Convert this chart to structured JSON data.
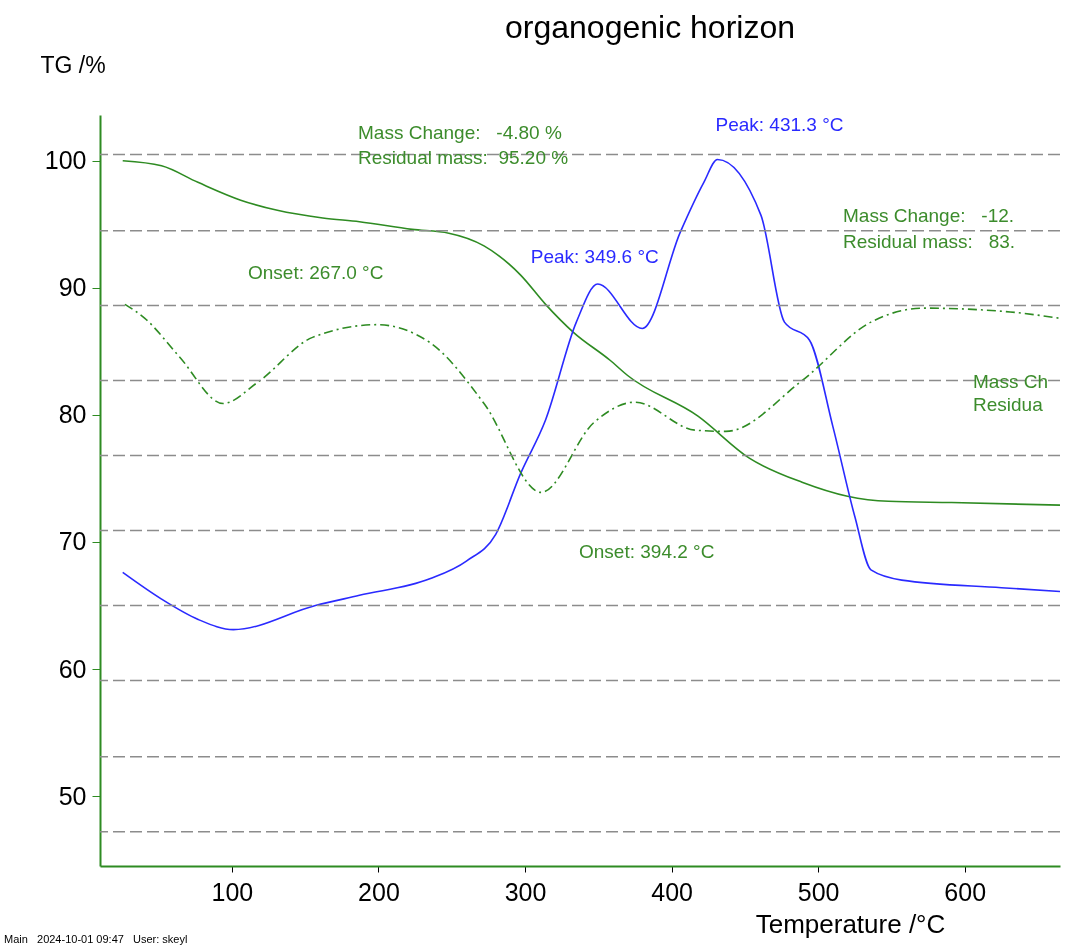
{
  "chart_data": {
    "type": "line",
    "title": "organogenic horizon",
    "xlabel": "Temperature /°C",
    "ylabel": "TG /%",
    "xlim": [
      10,
      665
    ],
    "xticks": [
      100,
      200,
      300,
      400,
      500,
      600
    ],
    "ylim": [
      44.5,
      103.6
    ],
    "yticks": [
      50,
      60,
      70,
      80,
      90,
      100
    ],
    "series": [
      {
        "color": "#2e8b22",
        "line_style": "solid",
        "x": [
          25.5,
          52,
          76.8,
          106,
          131,
          162,
          187,
          223,
          248,
          272,
          297,
          314,
          333,
          358,
          370,
          418,
          453,
          489,
          520,
          548,
          591,
          665
        ],
        "values": [
          100,
          99.6,
          98.3,
          96.9,
          96.1,
          95.5,
          95.2,
          94.6,
          94.3,
          93.3,
          91.0,
          88.7,
          86.5,
          84.3,
          83.1,
          79.9,
          76.6,
          74.7,
          73.6,
          73.2,
          73.1,
          72.9
        ]
      },
      {
        "color": "#2a2aff",
        "line_style": "solid",
        "x": [
          25.5,
          52,
          77,
          101,
          157,
          187,
          235,
          260,
          280,
          297,
          314,
          335,
          349.6,
          380,
          406,
          422,
          431.3,
          461,
          477,
          494,
          510,
          525,
          536,
          557,
          625,
          665
        ],
        "values": [
          67.6,
          65.5,
          63.9,
          63.1,
          65.0,
          65.8,
          67.1,
          68.5,
          70.6,
          75.4,
          79.6,
          87.3,
          90.3,
          86.8,
          94.4,
          98.3,
          100.1,
          95.7,
          87.3,
          85.9,
          79.1,
          72.0,
          67.8,
          67.0,
          66.4,
          66.1
        ]
      },
      {
        "color": "#2e8b22",
        "line_style": "dashed",
        "x": [
          27,
          40.6,
          64,
          94,
          118,
          155,
          199,
          235,
          272,
          311,
          347,
          375,
          416,
          437,
          489,
          536,
          572,
          631,
          665
        ],
        "values": [
          88.7,
          87.6,
          84.6,
          80.9,
          82.6,
          86.1,
          87.1,
          85.7,
          80.9,
          73.9,
          79.4,
          81.0,
          78.8,
          78.7,
          82.7,
          87.3,
          88.4,
          88.1,
          87.6
        ]
      }
    ],
    "ref_lines": [
      {
        "axis": "y",
        "value": 100.5,
        "color": "#8c8c8c",
        "line_style": "dashed"
      },
      {
        "axis": "y",
        "value": 94.5,
        "color": "#8c8c8c",
        "line_style": "dashed"
      },
      {
        "axis": "y",
        "value": 88.6,
        "color": "#8c8c8c",
        "line_style": "dashed"
      },
      {
        "axis": "y",
        "value": 82.7,
        "color": "#8c8c8c",
        "line_style": "dashed"
      },
      {
        "axis": "y",
        "value": 76.8,
        "color": "#8c8c8c",
        "line_style": "dashed"
      },
      {
        "axis": "y",
        "value": 70.9,
        "color": "#8c8c8c",
        "line_style": "dashed"
      },
      {
        "axis": "y",
        "value": 65.0,
        "color": "#8c8c8c",
        "line_style": "dashed"
      },
      {
        "axis": "y",
        "value": 59.1,
        "color": "#8c8c8c",
        "line_style": "dashed"
      },
      {
        "axis": "y",
        "value": 53.1,
        "color": "#8c8c8c",
        "line_style": "dashed"
      },
      {
        "axis": "y",
        "value": 47.2,
        "color": "#8c8c8c",
        "line_style": "dashed"
      }
    ],
    "annotations": [
      "Mass Change:   -4.80 %",
      "Residual mass:  95.20 %",
      "Onset: 267.0 °C",
      {
        "text": "Peak: 349.6 °C",
        "x": 349.6,
        "y": 90.3
      },
      {
        "text": "Peak: 431.3 °C",
        "x": 431.3,
        "y": 100.1
      },
      "Mass Change:   -12.",
      "Residual mass:   83.",
      "Onset: 394.2 °C",
      "Mass Ch",
      "Residua",
      "Main   2024-10-01 09:47   User: skeyl"
    ]
  }
}
